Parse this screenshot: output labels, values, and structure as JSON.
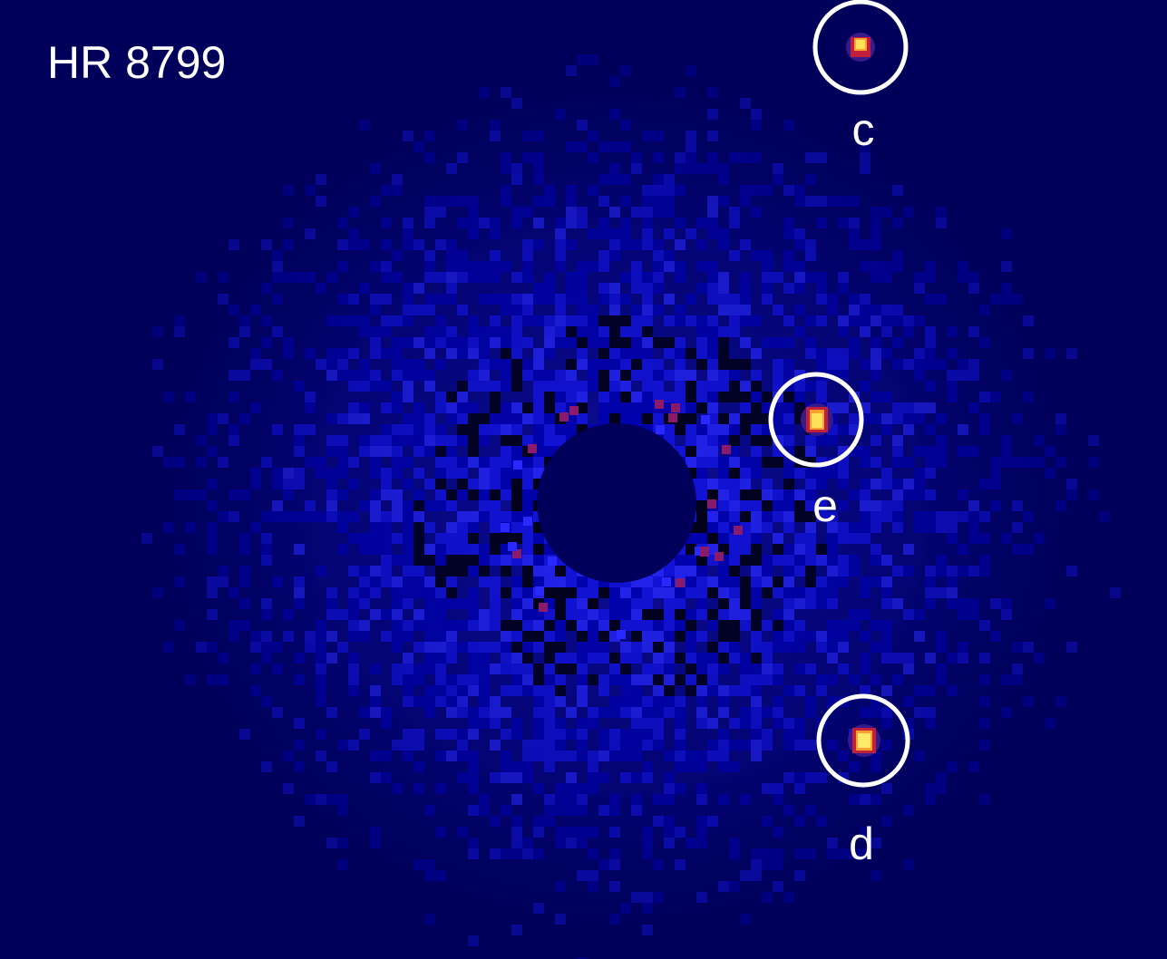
{
  "image": {
    "title": "HR 8799",
    "background_color": "#00005a",
    "speckle_colors": [
      "#0000b4",
      "#1414e6",
      "#2828ff",
      "#000000",
      "#8a1a6a"
    ],
    "planets": [
      {
        "letter": "c",
        "core_color": "#ffe25a",
        "halo_color": "#c0203a"
      },
      {
        "letter": "e",
        "core_color": "#ffe25a",
        "halo_color": "#c0203a"
      },
      {
        "letter": "d",
        "core_color": "#ffea6a",
        "halo_color": "#c0203a"
      }
    ],
    "marker_color": "#ffffff"
  }
}
